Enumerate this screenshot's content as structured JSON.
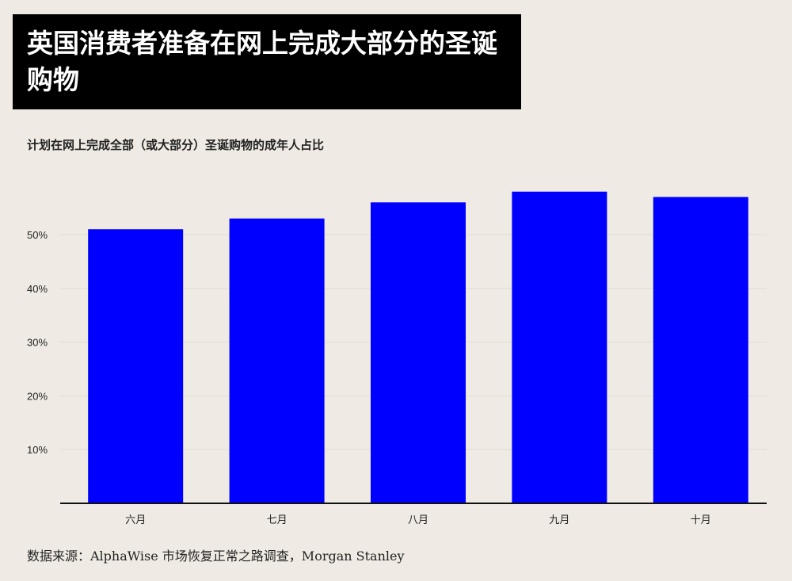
{
  "chart_data": {
    "type": "bar",
    "title": "英国消费者准备在网上完成大部分的圣诞购物",
    "subtitle": "计划在网上完成全部（或大部分）圣诞购物的成年人占比",
    "categories": [
      "六月",
      "七月",
      "八月",
      "九月",
      "十月"
    ],
    "values": [
      51,
      53,
      56,
      58,
      57
    ],
    "unit": "%",
    "xlabel": "",
    "ylabel": "",
    "ylim": [
      0,
      60
    ],
    "yticks": [
      10,
      20,
      30,
      40,
      50
    ],
    "ytick_labels": [
      "10%",
      "20%",
      "30%",
      "40%",
      "50%"
    ],
    "grid": true,
    "bar_color": "#0000ff",
    "source": "数据来源：AlphaWise 市场恢复正常之路调查，Morgan Stanley"
  }
}
